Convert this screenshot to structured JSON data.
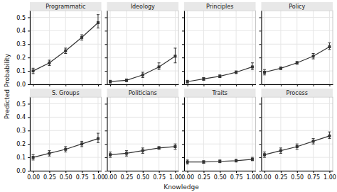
{
  "chart_data": [
    {
      "type": "line",
      "title": "Programmatic",
      "x": [
        0.0,
        0.25,
        0.5,
        0.75,
        1.0
      ],
      "values": [
        0.1,
        0.16,
        0.25,
        0.35,
        0.46
      ],
      "yerr_lo": [
        0.02,
        0.02,
        0.02,
        0.02,
        0.04
      ],
      "yerr_hi": [
        0.02,
        0.02,
        0.02,
        0.02,
        0.06
      ],
      "color": "#333333",
      "marker": "square",
      "xlim": [
        -0.05,
        1.05
      ],
      "ylim": [
        0.0,
        0.55
      ],
      "xticks": [
        {
          "value": 0.0,
          "label": "0.00"
        },
        0.25,
        {
          "value": 0.5,
          "label": "0.50"
        },
        0.75,
        {
          "value": 1.0,
          "label": "1.00"
        }
      ],
      "yticks": [
        {
          "value": 0.0,
          "label": "0.0"
        },
        0.1,
        0.2,
        0.3,
        0.4,
        0.5
      ],
      "grid": true,
      "tick_labels": "y"
    },
    {
      "type": "line",
      "title": "Ideology",
      "x": [
        0.0,
        0.25,
        0.5,
        0.75,
        1.0
      ],
      "values": [
        0.02,
        0.03,
        0.07,
        0.13,
        0.21
      ],
      "yerr_lo": [
        0.01,
        0.01,
        0.02,
        0.02,
        0.05
      ],
      "yerr_hi": [
        0.01,
        0.01,
        0.02,
        0.03,
        0.06
      ],
      "color": "#333333",
      "marker": "square",
      "xlim": [
        -0.05,
        1.05
      ],
      "ylim": [
        0.0,
        0.55
      ],
      "xticks": [
        {
          "value": 0.0,
          "label": "0.00"
        },
        0.25,
        {
          "value": 0.5,
          "label": "0.50"
        },
        0.75,
        {
          "value": 1.0,
          "label": "1.00"
        }
      ],
      "yticks": [
        {
          "value": 0.0,
          "label": "0.0"
        },
        0.1,
        0.2,
        0.3,
        0.4,
        0.5
      ],
      "grid": true,
      "tick_labels": false
    },
    {
      "type": "line",
      "title": "Principles",
      "x": [
        0.0,
        0.25,
        0.5,
        0.75,
        1.0
      ],
      "values": [
        0.02,
        0.04,
        0.06,
        0.09,
        0.13
      ],
      "yerr_lo": [
        0.01,
        0.01,
        0.01,
        0.01,
        0.02
      ],
      "yerr_hi": [
        0.01,
        0.01,
        0.01,
        0.01,
        0.03
      ],
      "color": "#333333",
      "marker": "square",
      "xlim": [
        -0.05,
        1.05
      ],
      "ylim": [
        0.0,
        0.55
      ],
      "xticks": [
        {
          "value": 0.0,
          "label": "0.00"
        },
        0.25,
        {
          "value": 0.5,
          "label": "0.50"
        },
        0.75,
        {
          "value": 1.0,
          "label": "1.00"
        }
      ],
      "yticks": [
        {
          "value": 0.0,
          "label": "0.0"
        },
        0.1,
        0.2,
        0.3,
        0.4,
        0.5
      ],
      "grid": true,
      "tick_labels": false
    },
    {
      "type": "line",
      "title": "Policy",
      "x": [
        0.0,
        0.25,
        0.5,
        0.75,
        1.0
      ],
      "values": [
        0.09,
        0.12,
        0.16,
        0.21,
        0.28
      ],
      "yerr_lo": [
        0.02,
        0.01,
        0.01,
        0.02,
        0.02
      ],
      "yerr_hi": [
        0.02,
        0.01,
        0.01,
        0.02,
        0.03
      ],
      "color": "#333333",
      "marker": "square",
      "xlim": [
        -0.05,
        1.05
      ],
      "ylim": [
        0.0,
        0.55
      ],
      "xticks": [
        {
          "value": 0.0,
          "label": "0.00"
        },
        0.25,
        {
          "value": 0.5,
          "label": "0.50"
        },
        0.75,
        {
          "value": 1.0,
          "label": "1.00"
        }
      ],
      "yticks": [
        {
          "value": 0.0,
          "label": "0.0"
        },
        0.1,
        0.2,
        0.3,
        0.4,
        0.5
      ],
      "grid": true,
      "tick_labels": false
    },
    {
      "type": "line",
      "title": "S. Groups",
      "x": [
        0.0,
        0.25,
        0.5,
        0.75,
        1.0
      ],
      "values": [
        0.1,
        0.13,
        0.16,
        0.2,
        0.24
      ],
      "yerr_lo": [
        0.02,
        0.02,
        0.02,
        0.02,
        0.03
      ],
      "yerr_hi": [
        0.02,
        0.02,
        0.02,
        0.02,
        0.04
      ],
      "color": "#333333",
      "marker": "square",
      "xlim": [
        -0.05,
        1.05
      ],
      "ylim": [
        0.0,
        0.55
      ],
      "xticks": [
        {
          "value": 0.0,
          "label": "0.00"
        },
        0.25,
        {
          "value": 0.5,
          "label": "0.50"
        },
        0.75,
        {
          "value": 1.0,
          "label": "1.00"
        }
      ],
      "yticks": [
        {
          "value": 0.0,
          "label": "0.0"
        },
        0.1,
        0.2,
        0.3,
        0.4,
        0.5
      ],
      "grid": true
    },
    {
      "type": "line",
      "title": "Politicians",
      "x": [
        0.0,
        0.25,
        0.5,
        0.75,
        1.0
      ],
      "values": [
        0.12,
        0.13,
        0.15,
        0.17,
        0.18
      ],
      "yerr_lo": [
        0.02,
        0.02,
        0.02,
        0.01,
        0.02
      ],
      "yerr_hi": [
        0.02,
        0.02,
        0.02,
        0.01,
        0.02
      ],
      "color": "#333333",
      "marker": "square",
      "xlim": [
        -0.05,
        1.05
      ],
      "ylim": [
        0.0,
        0.55
      ],
      "xticks": [
        {
          "value": 0.0,
          "label": "0.00"
        },
        0.25,
        {
          "value": 0.5,
          "label": "0.50"
        },
        0.75,
        {
          "value": 1.0,
          "label": "1.00"
        }
      ],
      "yticks": [
        {
          "value": 0.0,
          "label": "0.0"
        },
        0.1,
        0.2,
        0.3,
        0.4,
        0.5
      ],
      "grid": true,
      "tick_labels": "x"
    },
    {
      "type": "line",
      "title": "Traits",
      "x": [
        0.0,
        0.25,
        0.5,
        0.75,
        1.0
      ],
      "values": [
        0.065,
        0.065,
        0.07,
        0.075,
        0.085
      ],
      "yerr_lo": [
        0.015,
        0.01,
        0.01,
        0.01,
        0.01
      ],
      "yerr_hi": [
        0.015,
        0.01,
        0.01,
        0.01,
        0.015
      ],
      "color": "#333333",
      "marker": "square",
      "xlim": [
        -0.05,
        1.05
      ],
      "ylim": [
        0.0,
        0.55
      ],
      "xticks": [
        {
          "value": 0.0,
          "label": "0.00"
        },
        0.25,
        {
          "value": 0.5,
          "label": "0.50"
        },
        0.75,
        {
          "value": 1.0,
          "label": "1.00"
        }
      ],
      "yticks": [
        {
          "value": 0.0,
          "label": "0.0"
        },
        0.1,
        0.2,
        0.3,
        0.4,
        0.5
      ],
      "grid": true,
      "tick_labels": "x"
    },
    {
      "type": "line",
      "title": "Process",
      "x": [
        0.0,
        0.25,
        0.5,
        0.75,
        1.0
      ],
      "values": [
        0.12,
        0.15,
        0.18,
        0.22,
        0.26
      ],
      "yerr_lo": [
        0.02,
        0.02,
        0.02,
        0.02,
        0.02
      ],
      "yerr_hi": [
        0.02,
        0.02,
        0.02,
        0.02,
        0.03
      ],
      "color": "#333333",
      "marker": "square",
      "xlim": [
        -0.05,
        1.05
      ],
      "ylim": [
        0.0,
        0.55
      ],
      "xticks": [
        {
          "value": 0.0,
          "label": "0.00"
        },
        0.25,
        {
          "value": 0.5,
          "label": "0.50"
        },
        0.75,
        {
          "value": 1.0,
          "label": "1.00"
        }
      ],
      "yticks": [
        {
          "value": 0.0,
          "label": "0.0"
        },
        0.1,
        0.2,
        0.3,
        0.4,
        0.5
      ],
      "grid": true,
      "tick_labels": "x"
    }
  ],
  "xlabel": "Knowledge",
  "ylabel": "Predicted Probability"
}
